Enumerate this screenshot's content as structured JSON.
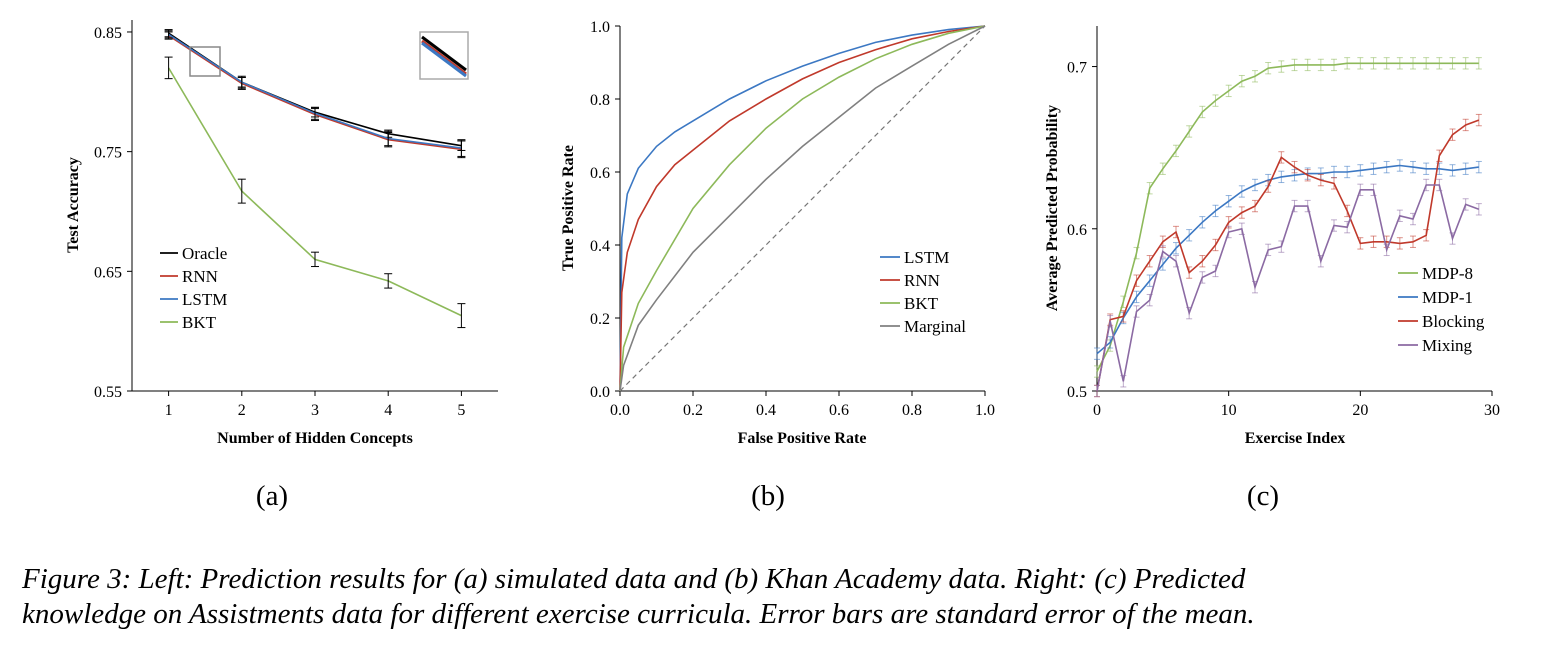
{
  "caption": {
    "line1": "Figure 3: Left: Prediction results for (a) simulated data and (b) Khan Academy data. Right: (c) Predicted",
    "line2": "knowledge on Assistments data for different exercise curricula. Error bars are standard error of the mean."
  },
  "chart_data": [
    {
      "panel": "(a)",
      "type": "line",
      "xlabel": "Number of Hidden Concepts",
      "ylabel": "Test Accuracy",
      "xlim": [
        0.5,
        5.5
      ],
      "ylim": [
        0.55,
        0.86
      ],
      "xticks": [
        1,
        2,
        3,
        4,
        5
      ],
      "yticks": [
        0.55,
        0.65,
        0.75,
        0.85
      ],
      "ytick_labels": [
        "0.55",
        "0.65",
        "0.75",
        "0.85"
      ],
      "grid": false,
      "legend": "lower-left",
      "x": [
        1,
        2,
        3,
        4,
        5
      ],
      "series": [
        {
          "name": "Oracle",
          "color": "#000000",
          "values": [
            0.849,
            0.808,
            0.783,
            0.765,
            0.755
          ],
          "errors": [
            0.003,
            0.004,
            0.004,
            0.003,
            0.004
          ]
        },
        {
          "name": "RNN",
          "color": "#c0392b",
          "values": [
            0.847,
            0.807,
            0.781,
            0.76,
            0.752
          ],
          "errors": [
            0.003,
            0.005,
            0.005,
            0.006,
            0.007
          ]
        },
        {
          "name": "LSTM",
          "color": "#3c78c3",
          "values": [
            0.848,
            0.808,
            0.782,
            0.761,
            0.753
          ],
          "errors": [
            0.003,
            0.005,
            0.005,
            0.006,
            0.007
          ]
        },
        {
          "name": "BKT",
          "color": "#8db95a",
          "values": [
            0.82,
            0.717,
            0.66,
            0.642,
            0.613
          ],
          "errors": [
            0.009,
            0.01,
            0.006,
            0.006,
            0.01
          ]
        }
      ]
    },
    {
      "panel": "(b)",
      "type": "line",
      "xlabel": "False Positive Rate",
      "ylabel": "True Positive Rate",
      "xlim": [
        0,
        1
      ],
      "ylim": [
        0,
        1
      ],
      "xticks": [
        0,
        0.2,
        0.4,
        0.6,
        0.8,
        1
      ],
      "yticks": [
        0,
        0.2,
        0.4,
        0.6,
        0.8,
        1
      ],
      "xtick_labels": [
        "0.0",
        "0.2",
        "0.4",
        "0.6",
        "0.8",
        "1.0"
      ],
      "ytick_labels": [
        "0.0",
        "0.2",
        "0.4",
        "0.6",
        "0.8",
        "1.0"
      ],
      "grid": false,
      "legend": "lower-right",
      "diagonal": true,
      "series": [
        {
          "name": "LSTM",
          "color": "#3c78c3",
          "x": [
            0,
            0.005,
            0.02,
            0.05,
            0.1,
            0.15,
            0.2,
            0.3,
            0.4,
            0.5,
            0.6,
            0.7,
            0.8,
            0.9,
            1.0
          ],
          "values": [
            0,
            0.42,
            0.54,
            0.61,
            0.67,
            0.71,
            0.74,
            0.8,
            0.85,
            0.89,
            0.925,
            0.955,
            0.975,
            0.99,
            1.0
          ]
        },
        {
          "name": "RNN",
          "color": "#c0392b",
          "x": [
            0,
            0.005,
            0.02,
            0.05,
            0.1,
            0.15,
            0.2,
            0.3,
            0.4,
            0.5,
            0.6,
            0.7,
            0.8,
            0.9,
            1.0
          ],
          "values": [
            0,
            0.27,
            0.38,
            0.47,
            0.56,
            0.62,
            0.66,
            0.74,
            0.8,
            0.855,
            0.9,
            0.935,
            0.965,
            0.985,
            1.0
          ]
        },
        {
          "name": "BKT",
          "color": "#8db95a",
          "x": [
            0,
            0.01,
            0.05,
            0.1,
            0.2,
            0.3,
            0.4,
            0.5,
            0.6,
            0.7,
            0.8,
            0.9,
            1.0
          ],
          "values": [
            0,
            0.12,
            0.24,
            0.33,
            0.5,
            0.62,
            0.72,
            0.8,
            0.86,
            0.91,
            0.95,
            0.98,
            1.0
          ]
        },
        {
          "name": "Marginal",
          "color": "#808080",
          "x": [
            0,
            0.01,
            0.05,
            0.1,
            0.2,
            0.3,
            0.4,
            0.5,
            0.6,
            0.7,
            0.8,
            0.9,
            1.0
          ],
          "values": [
            0,
            0.07,
            0.18,
            0.25,
            0.38,
            0.48,
            0.58,
            0.67,
            0.75,
            0.83,
            0.89,
            0.95,
            1.0
          ]
        }
      ]
    },
    {
      "panel": "(c)",
      "type": "line",
      "xlabel": "Exercise Index",
      "ylabel": "Average Predicted Probability",
      "xlim": [
        0,
        30
      ],
      "ylim": [
        0.5,
        0.725
      ],
      "xticks": [
        0,
        10,
        20,
        30
      ],
      "yticks": [
        0.5,
        0.6,
        0.7
      ],
      "xtick_labels": [
        "0",
        "10",
        "20",
        "30"
      ],
      "ytick_labels": [
        "0.5",
        "0.6",
        "0.7"
      ],
      "grid": false,
      "legend": "right",
      "x": [
        0,
        1,
        2,
        3,
        4,
        5,
        6,
        7,
        8,
        9,
        10,
        11,
        12,
        13,
        14,
        15,
        16,
        17,
        18,
        19,
        20,
        21,
        22,
        23,
        24,
        25,
        26,
        27,
        28,
        29
      ],
      "series": [
        {
          "name": "MDP-8",
          "color": "#8db95a",
          "values": [
            0.512,
            0.528,
            0.555,
            0.585,
            0.625,
            0.637,
            0.648,
            0.66,
            0.672,
            0.679,
            0.685,
            0.691,
            0.694,
            0.699,
            0.7,
            0.701,
            0.701,
            0.701,
            0.701,
            0.702,
            0.702,
            0.702,
            0.702,
            0.702,
            0.702,
            0.702,
            0.702,
            0.702,
            0.702,
            0.702
          ]
        },
        {
          "name": "MDP-1",
          "color": "#3c78c3",
          "values": [
            0.523,
            0.53,
            0.545,
            0.558,
            0.568,
            0.578,
            0.588,
            0.596,
            0.604,
            0.611,
            0.617,
            0.623,
            0.627,
            0.63,
            0.632,
            0.633,
            0.634,
            0.634,
            0.635,
            0.635,
            0.636,
            0.637,
            0.638,
            0.639,
            0.638,
            0.637,
            0.637,
            0.636,
            0.637,
            0.638
          ]
        },
        {
          "name": "Blocking",
          "color": "#c0392b",
          "values": [
            0.5,
            0.544,
            0.546,
            0.568,
            0.58,
            0.592,
            0.598,
            0.573,
            0.58,
            0.59,
            0.604,
            0.61,
            0.614,
            0.626,
            0.644,
            0.638,
            0.633,
            0.63,
            0.628,
            0.611,
            0.591,
            0.592,
            0.592,
            0.591,
            0.592,
            0.596,
            0.645,
            0.658,
            0.664,
            0.667
          ]
        },
        {
          "name": "Mixing",
          "color": "#8b6aa3",
          "values": [
            0.5,
            0.543,
            0.506,
            0.549,
            0.556,
            0.586,
            0.58,
            0.548,
            0.57,
            0.574,
            0.598,
            0.6,
            0.564,
            0.587,
            0.589,
            0.614,
            0.614,
            0.58,
            0.602,
            0.601,
            0.624,
            0.624,
            0.587,
            0.608,
            0.606,
            0.627,
            0.627,
            0.594,
            0.615,
            0.612
          ]
        }
      ]
    }
  ],
  "panels": {
    "a": {
      "tag": "(a)"
    },
    "b": {
      "tag": "(b)"
    },
    "c": {
      "tag": "(c)"
    }
  }
}
